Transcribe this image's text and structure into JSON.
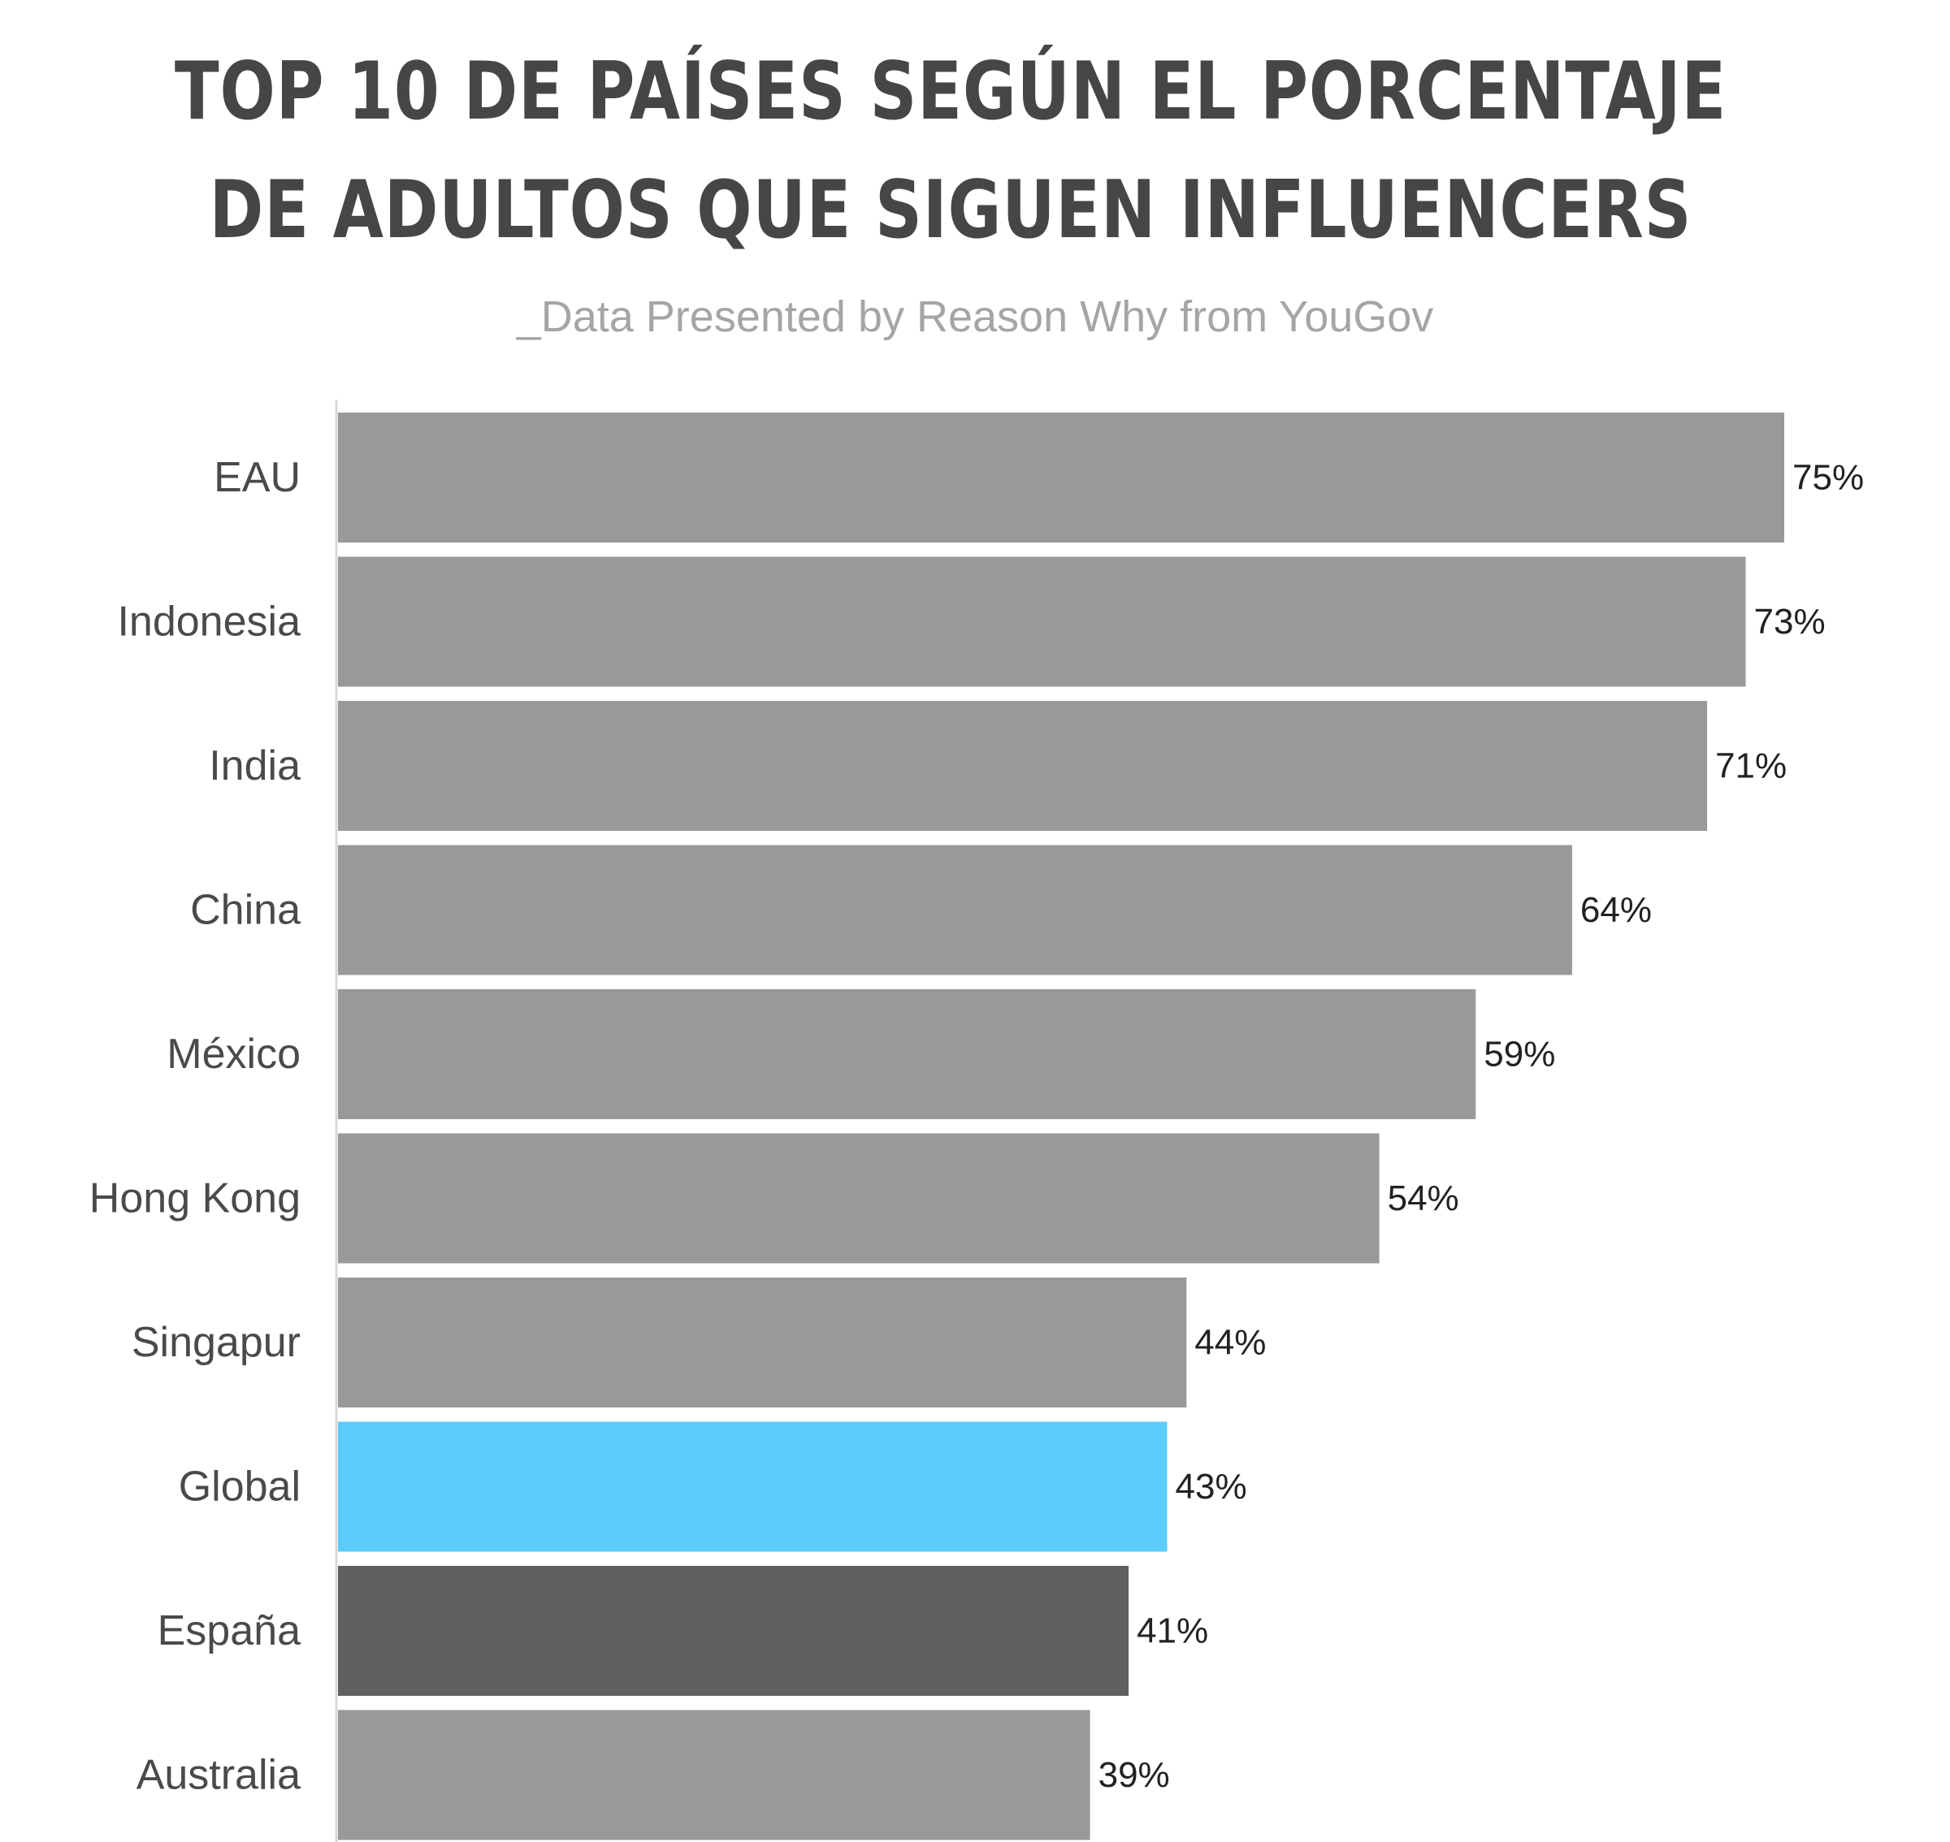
{
  "title": {
    "line1": "TOP 10 DE PAÍSES SEGÚN EL PORCENTAJE",
    "line2": "DE ADULTOS QUE SIGUEN INFLUENCERS"
  },
  "subtitle": "_Data Presented by Reason Why from YouGov",
  "colors": {
    "default_bar": "#999999",
    "highlight_global": "#5bccfc",
    "highlight_spain": "#606060",
    "axis_line": "#d9d9d9"
  },
  "chart_data": {
    "type": "bar",
    "orientation": "horizontal",
    "title": "TOP 10 DE PAÍSES SEGÚN EL PORCENTAJE DE ADULTOS QUE SIGUEN INFLUENCERS",
    "subtitle": "_Data Presented by Reason Why from YouGov",
    "categories": [
      "EAU",
      "Indonesia",
      "India",
      "China",
      "México",
      "Hong Kong",
      "Singapur",
      "Global",
      "España",
      "Australia"
    ],
    "values": [
      75,
      73,
      71,
      64,
      59,
      54,
      44,
      43,
      41,
      39
    ],
    "value_labels": [
      "75%",
      "73%",
      "71%",
      "64%",
      "59%",
      "54%",
      "44%",
      "43%",
      "41%",
      "39%"
    ],
    "bar_colors": [
      "#999999",
      "#999999",
      "#999999",
      "#999999",
      "#999999",
      "#999999",
      "#999999",
      "#5bccfc",
      "#606060",
      "#999999"
    ],
    "xlim": [
      0,
      75
    ],
    "grid": false,
    "legend": "none"
  }
}
